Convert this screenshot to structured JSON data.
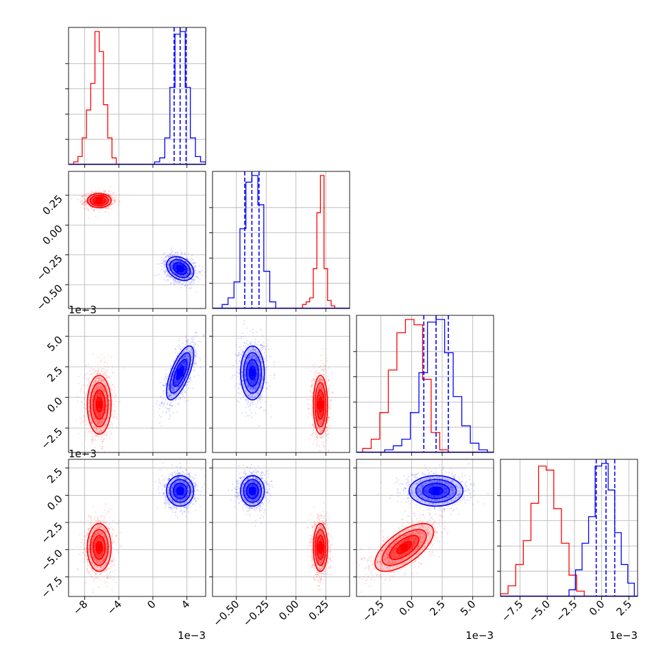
{
  "chart_data": {
    "type": "corner",
    "grid": true,
    "parameters": [
      {
        "index": 0,
        "range": [
          -0.0099,
          0.0062
        ],
        "ticks": [
          -0.008,
          -0.004,
          0.0,
          0.004
        ],
        "tick_labels": [
          "−8",
          "−4",
          "0",
          "4"
        ],
        "offset_text": "1e−3"
      },
      {
        "index": 1,
        "range": [
          -0.7,
          0.45
        ],
        "ticks": [
          -0.5,
          -0.25,
          0.0,
          0.25
        ],
        "tick_labels": [
          "−0.50",
          "−0.25",
          "0.00",
          "0.25"
        ],
        "offset_text": ""
      },
      {
        "index": 2,
        "range": [
          -0.0045,
          0.0067
        ],
        "ticks": [
          -0.0025,
          0.0,
          0.0025,
          0.005
        ],
        "tick_labels": [
          "−2.5",
          "0.0",
          "2.5",
          "5.0"
        ],
        "offset_text": "1e−3"
      },
      {
        "index": 3,
        "range": [
          -0.0093,
          0.0033
        ],
        "ticks": [
          -0.0075,
          -0.005,
          -0.0025,
          0.0,
          0.0025
        ],
        "tick_labels": [
          "−7.5",
          "−5.0",
          "−2.5",
          "0.0",
          "2.5"
        ],
        "offset_text": "1e−3"
      }
    ],
    "series": [
      {
        "color": "#ff0000",
        "means": [
          -0.0063,
          0.205,
          -0.0006,
          -0.0048
        ],
        "sigmas": [
          0.0007,
          0.03,
          0.0012,
          0.0011
        ],
        "correlations": {
          "2-3": 0.65
        },
        "quantile_lines": false,
        "histograms": {
          "0": {
            "edges": [
              -0.0093,
              -0.0088,
              -0.0083,
              -0.0078,
              -0.0073,
              -0.0068,
              -0.0063,
              -0.0058,
              -0.0053,
              -0.0048,
              -0.0043,
              -0.0038
            ],
            "counts": [
              0.02,
              0.06,
              0.2,
              0.41,
              0.61,
              1.0,
              0.85,
              0.45,
              0.2,
              0.05,
              0.0
            ]
          },
          "1": {
            "edges": [
              0.025,
              0.055,
              0.085,
              0.115,
              0.145,
              0.175,
              0.205,
              0.235,
              0.265,
              0.295,
              0.325
            ],
            "counts": [
              0.0,
              0.03,
              0.05,
              0.08,
              0.3,
              0.72,
              1.0,
              0.3,
              0.06,
              0.02
            ]
          },
          "2": {
            "edges": [
              -0.004,
              -0.0033,
              -0.0026,
              -0.0019,
              -0.0012,
              -0.0005,
              0.0002,
              0.0009,
              0.0016,
              0.0023,
              0.003
            ],
            "counts": [
              0.03,
              0.1,
              0.3,
              0.62,
              0.9,
              1.0,
              0.96,
              0.55,
              0.15,
              0.02
            ]
          },
          "3": {
            "edges": [
              -0.0093,
              -0.0086,
              -0.0079,
              -0.0072,
              -0.0065,
              -0.0058,
              -0.0051,
              -0.0044,
              -0.0037,
              -0.003,
              -0.0023,
              -0.0016
            ],
            "counts": [
              0.02,
              0.08,
              0.24,
              0.42,
              0.7,
              0.98,
              0.95,
              0.66,
              0.4,
              0.16,
              0.04
            ]
          }
        }
      },
      {
        "color": "#0000ff",
        "means": [
          0.0032,
          -0.365,
          0.002,
          0.0004
        ],
        "sigmas": [
          0.0008,
          0.05,
          0.0011,
          0.0007
        ],
        "correlations": {
          "0-2": 0.7,
          "0-1": -0.3
        },
        "quantile_lines": true,
        "quantiles": {
          "0": [
            0.0025,
            0.0032,
            0.0039
          ],
          "1": [
            -0.43,
            -0.37,
            -0.31
          ],
          "2": [
            0.001,
            0.002,
            0.003
          ],
          "3": [
            -0.0005,
            0.0004,
            0.0012
          ]
        },
        "histograms": {
          "0": {
            "edges": [
              0.0002,
              0.0008,
              0.0014,
              0.002,
              0.0026,
              0.0032,
              0.0038,
              0.0044,
              0.005,
              0.0056,
              0.0062
            ],
            "counts": [
              0.02,
              0.05,
              0.2,
              0.58,
              0.98,
              1.0,
              0.58,
              0.2,
              0.06,
              0.02
            ]
          },
          "1": {
            "edges": [
              -0.62,
              -0.57,
              -0.52,
              -0.47,
              -0.42,
              -0.37,
              -0.32,
              -0.27,
              -0.22,
              -0.17
            ],
            "counts": [
              0.03,
              0.08,
              0.2,
              0.6,
              0.95,
              1.0,
              0.78,
              0.28,
              0.05
            ]
          },
          "2": {
            "edges": [
              -0.0022,
              -0.0015,
              -0.0008,
              -0.0001,
              0.0006,
              0.0013,
              0.002,
              0.0027,
              0.0034,
              0.0041,
              0.0048,
              0.0055,
              0.0062
            ],
            "counts": [
              0.02,
              0.05,
              0.1,
              0.3,
              0.6,
              0.98,
              1.0,
              0.75,
              0.42,
              0.2,
              0.07,
              0.02
            ]
          },
          "3": {
            "edges": [
              -0.003,
              -0.0024,
              -0.0018,
              -0.0012,
              -0.0006,
              0.0,
              0.0006,
              0.0012,
              0.0018,
              0.0024,
              0.003
            ],
            "counts": [
              0.05,
              0.2,
              0.4,
              0.6,
              0.98,
              1.0,
              0.8,
              0.48,
              0.24,
              0.1
            ]
          }
        }
      }
    ]
  }
}
